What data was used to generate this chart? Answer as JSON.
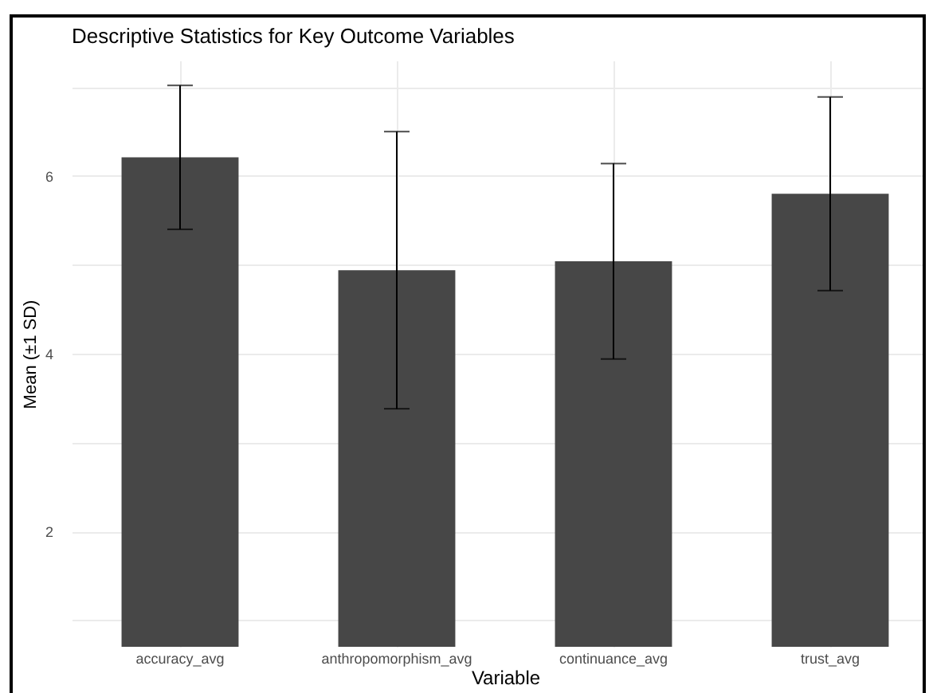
{
  "chart_data": {
    "type": "bar",
    "title": "Descriptive Statistics for Key Outcome Variables",
    "xlabel": "Variable",
    "ylabel": "Mean (±1 SD)",
    "categories": [
      "accuracy_avg",
      "anthropomorphism_avg",
      "continuance_avg",
      "trust_avg"
    ],
    "values": [
      6.21,
      4.94,
      5.04,
      5.8
    ],
    "errors": [
      0.81,
      1.56,
      1.1,
      1.09
    ],
    "color": "#474747",
    "ylim": [
      0.7,
      7.3
    ],
    "yticks": [
      {
        "value": 1,
        "label": null
      },
      2,
      {
        "value": 3,
        "label": null
      },
      4,
      {
        "value": 5,
        "label": null
      },
      6,
      {
        "value": 7,
        "label": null
      }
    ],
    "grid": true
  }
}
